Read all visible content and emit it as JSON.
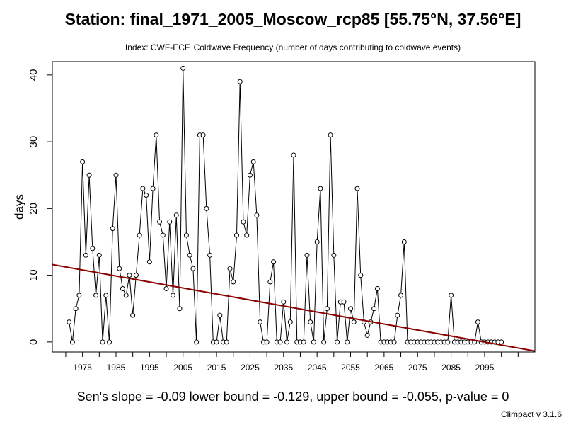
{
  "chart_data": {
    "type": "line",
    "title": "Station: final_1971_2005_Moscow_rcp85 [55.75°N, 37.56°E]",
    "subtitle": "Index: CWF-ECF. Coldwave Frequency (number of days contributing to coldwave events)",
    "xlabel": "",
    "ylabel": "days",
    "xlim": [
      1966,
      2110
    ],
    "ylim": [
      -1.5,
      42
    ],
    "x_ticks": [
      1975,
      1985,
      1995,
      2005,
      2015,
      2025,
      2035,
      2045,
      2055,
      2065,
      2075,
      2085,
      2095
    ],
    "y_ticks": [
      0,
      10,
      20,
      30,
      40
    ],
    "grid": false,
    "x": [
      1971,
      1972,
      1973,
      1974,
      1975,
      1976,
      1977,
      1978,
      1979,
      1980,
      1981,
      1982,
      1983,
      1984,
      1985,
      1986,
      1987,
      1988,
      1989,
      1990,
      1991,
      1992,
      1993,
      1994,
      1995,
      1996,
      1997,
      1998,
      1999,
      2000,
      2001,
      2002,
      2003,
      2004,
      2005,
      2006,
      2007,
      2008,
      2009,
      2010,
      2011,
      2012,
      2013,
      2014,
      2015,
      2016,
      2017,
      2018,
      2019,
      2020,
      2021,
      2022,
      2023,
      2024,
      2025,
      2026,
      2027,
      2028,
      2029,
      2030,
      2031,
      2032,
      2033,
      2034,
      2035,
      2036,
      2037,
      2038,
      2039,
      2040,
      2041,
      2042,
      2043,
      2044,
      2045,
      2046,
      2047,
      2048,
      2049,
      2050,
      2051,
      2052,
      2053,
      2054,
      2055,
      2056,
      2057,
      2058,
      2059,
      2060,
      2061,
      2062,
      2063,
      2064,
      2065,
      2066,
      2067,
      2068,
      2069,
      2070,
      2071,
      2072,
      2073,
      2074,
      2075,
      2076,
      2077,
      2078,
      2079,
      2080,
      2081,
      2082,
      2083,
      2084,
      2085,
      2086,
      2087,
      2088,
      2089,
      2090,
      2091,
      2092,
      2093,
      2094,
      2095,
      2096,
      2097,
      2098,
      2099,
      2100
    ],
    "series": [
      {
        "values": [
          3,
          0,
          5,
          7,
          27,
          13,
          25,
          14,
          7,
          13,
          0,
          7,
          0,
          17,
          25,
          11,
          8,
          7,
          10,
          4,
          10,
          16,
          23,
          22,
          12,
          23,
          31,
          18,
          16,
          8,
          18,
          7,
          19,
          5,
          41,
          16,
          13,
          11,
          0,
          31,
          31,
          20,
          13,
          0,
          0,
          4,
          0,
          0,
          11,
          9,
          16,
          39,
          18,
          16,
          25,
          27,
          19,
          3,
          0,
          0,
          9,
          12,
          0,
          0,
          6,
          0,
          3,
          28,
          0,
          0,
          0,
          13,
          3,
          0,
          15,
          23,
          0,
          5,
          31,
          13,
          0,
          6,
          6,
          0,
          5,
          3,
          23,
          10,
          3,
          1,
          3,
          5,
          8,
          0,
          0,
          0,
          0,
          0,
          4,
          7,
          15,
          0,
          0,
          0,
          0,
          0,
          0,
          0,
          0,
          0,
          0,
          0,
          0,
          0,
          7,
          0,
          0,
          0,
          0,
          0,
          0,
          0,
          3,
          0,
          0,
          0,
          0,
          0,
          0,
          0
        ]
      }
    ],
    "trend": {
      "x": [
        1966,
        2110
      ],
      "y": [
        11.6,
        -1.36
      ]
    },
    "colors": {
      "line": "#000000",
      "trend": "#8b0000",
      "points": "#000000"
    },
    "footer": "Sen's slope = -0.09   lower bound = -0.129,   upper bound = -0.055,   p-value = 0",
    "credit": "Climpact v 3.1.6"
  }
}
